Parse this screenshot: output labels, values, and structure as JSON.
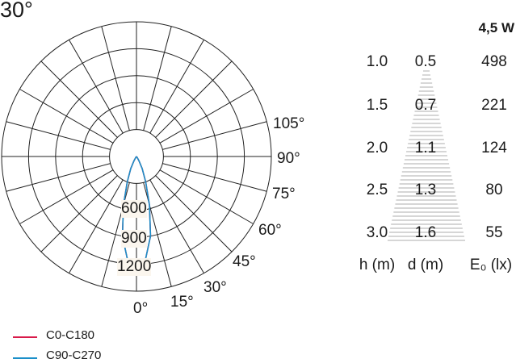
{
  "beam_angle_label": "30°",
  "polar": {
    "angle_labels": [
      "105°",
      "90°",
      "75°",
      "60°",
      "45°",
      "30°",
      "15°",
      "0°"
    ],
    "intensity_labels": [
      "600",
      "900",
      "1200"
    ],
    "radial_max": 1500,
    "ring_step": 300,
    "angle_step_deg": 15
  },
  "chart_data": {
    "type": "polar",
    "unit": "cd",
    "angles_deg": [
      0,
      5,
      10,
      15,
      20,
      25,
      30,
      40,
      90
    ],
    "series": [
      {
        "name": "C0-C180",
        "color": "#d81b4a",
        "values": [
          1240,
          1150,
          900,
          560,
          300,
          150,
          60,
          10,
          0
        ]
      },
      {
        "name": "C90-C270",
        "color": "#1b8fc9",
        "values": [
          1240,
          1150,
          900,
          560,
          300,
          150,
          60,
          10,
          0
        ]
      }
    ]
  },
  "legend": [
    {
      "label": "C0-C180",
      "color": "#d81b4a"
    },
    {
      "label": "C90-C270",
      "color": "#1b8fc9"
    }
  ],
  "table": {
    "power": "4,5 W",
    "headers": [
      "h (m)",
      "d (m)",
      "E₀ (lx)"
    ],
    "rows": [
      {
        "h": "1.0",
        "d": "0.5",
        "e": "498"
      },
      {
        "h": "1.5",
        "d": "0.7",
        "e": "221"
      },
      {
        "h": "2.0",
        "d": "1.1",
        "e": "124"
      },
      {
        "h": "2.5",
        "d": "1.3",
        "e": "80"
      },
      {
        "h": "3.0",
        "d": "1.6",
        "e": "55"
      }
    ]
  }
}
